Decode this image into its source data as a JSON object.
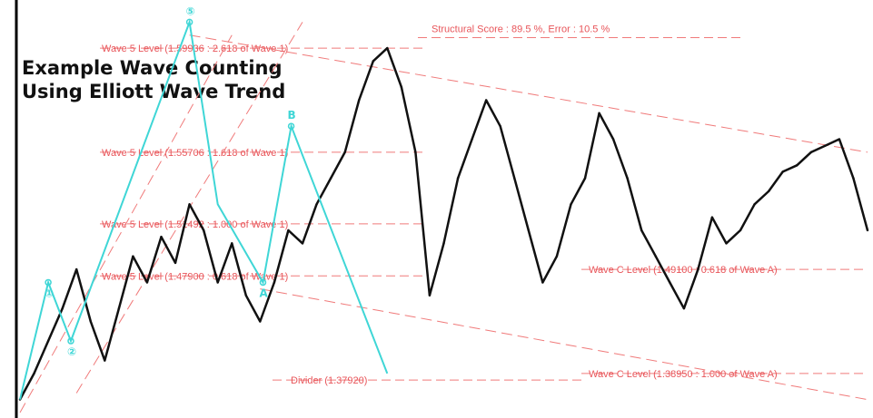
{
  "chart_data": {
    "type": "line",
    "title_lines": [
      "Example Wave Counting",
      "Using Elliott Wave Trend"
    ],
    "colors": {
      "price": "#111111",
      "wave": "#3fd6d6",
      "levels": "#f07a7a",
      "level_text": "#e8555a",
      "axis": "#000000"
    },
    "price_series": {
      "name": "",
      "x": [
        0,
        5,
        10,
        15,
        20,
        25,
        30,
        35,
        40,
        45,
        50,
        55,
        60,
        65,
        70,
        75,
        80,
        85,
        90,
        95,
        100,
        105,
        110,
        115,
        120,
        125,
        130,
        135,
        140,
        145,
        150,
        155,
        160,
        165,
        170,
        175,
        180,
        185,
        190,
        195,
        200,
        205,
        210,
        215,
        220,
        225,
        230,
        235,
        240,
        245,
        250,
        255,
        260,
        265,
        270,
        275,
        280,
        285,
        290,
        295,
        300
      ],
      "y": [
        1.37,
        1.39,
        1.415,
        1.44,
        1.47,
        1.43,
        1.4,
        1.44,
        1.48,
        1.46,
        1.495,
        1.475,
        1.52,
        1.5,
        1.46,
        1.49,
        1.45,
        1.43,
        1.46,
        1.5,
        1.49,
        1.52,
        1.54,
        1.56,
        1.6,
        1.63,
        1.64,
        1.61,
        1.56,
        1.45,
        1.49,
        1.54,
        1.57,
        1.6,
        1.58,
        1.54,
        1.5,
        1.46,
        1.48,
        1.52,
        1.54,
        1.59,
        1.57,
        1.54,
        1.5,
        1.48,
        1.46,
        1.44,
        1.47,
        1.51,
        1.49,
        1.5,
        1.52,
        1.53,
        1.545,
        1.55,
        1.56,
        1.565,
        1.57,
        1.54,
        1.5
      ]
    },
    "wave_points": [
      {
        "x": 0,
        "y": 1.37,
        "label": ""
      },
      {
        "x": 10,
        "y": 1.46,
        "label": "①"
      },
      {
        "x": 18,
        "y": 1.415,
        "label": "②"
      },
      {
        "x": 60,
        "y": 1.66,
        "label": "⑤"
      },
      {
        "x": 70,
        "y": 1.52,
        "label": ""
      },
      {
        "x": 86,
        "y": 1.46,
        "label": "A"
      },
      {
        "x": 96,
        "y": 1.58,
        "label": "B"
      },
      {
        "x": 130,
        "y": 1.39,
        "label": ""
      }
    ],
    "levels": [
      {
        "label": "Wave 5 Level (1.59936 : 2.618 of Wave 1)",
        "y": 1.64,
        "align": "left"
      },
      {
        "label": "Structural Score : 89.5 %, Error : 10.5 %",
        "y": 1.655,
        "align": "top"
      },
      {
        "label": "Wave 5 Level (1.55706 : 1.618 of Wave 1)",
        "y": 1.56,
        "align": "left"
      },
      {
        "label": "Wave 5 Level (1.51492 : 1.000 of Wave 1)",
        "y": 1.505,
        "align": "left"
      },
      {
        "label": "Wave 5 Level (1.47900 : 0.618 of Wave 1)",
        "y": 1.465,
        "align": "left"
      },
      {
        "label": "Wave C Level (1.49100 : 0.618 of Wave A)",
        "y": 1.47,
        "align": "right"
      },
      {
        "label": "Wave C Level (1.38950 : 1.000 of Wave A)",
        "y": 1.39,
        "align": "right"
      },
      {
        "label": "Divider (1.37920)",
        "y": 1.385,
        "align": "bottom"
      }
    ]
  }
}
